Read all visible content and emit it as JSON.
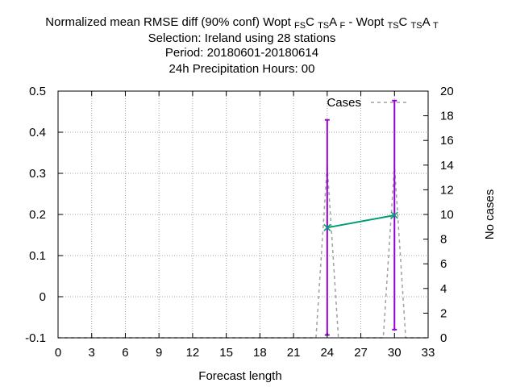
{
  "chart_data": {
    "type": "line",
    "title": {
      "line1": [
        {
          "t": "Normalized mean RMSE diff (90% conf) Wopt "
        },
        {
          "t": "FS",
          "sub": true
        },
        {
          "t": "C "
        },
        {
          "t": "TS",
          "sub": true
        },
        {
          "t": "A "
        },
        {
          "t": "F",
          "sub": true
        },
        {
          "t": " - Wopt "
        },
        {
          "t": "TS",
          "sub": true
        },
        {
          "t": "C "
        },
        {
          "t": "TS",
          "sub": true
        },
        {
          "t": "A "
        },
        {
          "t": "T",
          "sub": true
        }
      ],
      "line2": "Selection: Ireland using    28 stations",
      "line3": "Period: 20180601-20180614",
      "line4": "24h Precipitation   Hours:  00"
    },
    "xlabel": "Forecast length",
    "ylabel": "",
    "y2label": "No cases",
    "xlim": [
      0,
      33
    ],
    "ylim": [
      -0.1,
      0.5
    ],
    "y2lim": [
      0,
      20
    ],
    "xticks": [
      "0",
      "3",
      "6",
      "9",
      "12",
      "15",
      "18",
      "21",
      "24",
      "27",
      "30",
      "33"
    ],
    "yticks": [
      "-0.1",
      "0",
      "0.1",
      "0.2",
      "0.3",
      "0.4",
      "0.5"
    ],
    "y2ticks": [
      "0",
      "2",
      "4",
      "6",
      "8",
      "10",
      "12",
      "14",
      "16",
      "18",
      "20"
    ],
    "grid": true,
    "legend_position": "top-right",
    "series": [
      {
        "x": [
          24,
          30
        ],
        "y": [
          0.168,
          0.198
        ],
        "err_low": [
          -0.093,
          -0.08
        ],
        "err_high": [
          0.43,
          0.477
        ],
        "color": "#009e73",
        "errcolor": "#9400d3"
      },
      {
        "name": "Cases",
        "axis": "y2",
        "x": [
          0,
          23,
          24,
          25,
          29,
          30,
          31,
          33
        ],
        "y": [
          0,
          0,
          14,
          0,
          0,
          14,
          0,
          0
        ],
        "color": "#a0a0a0",
        "dash": true
      }
    ]
  }
}
